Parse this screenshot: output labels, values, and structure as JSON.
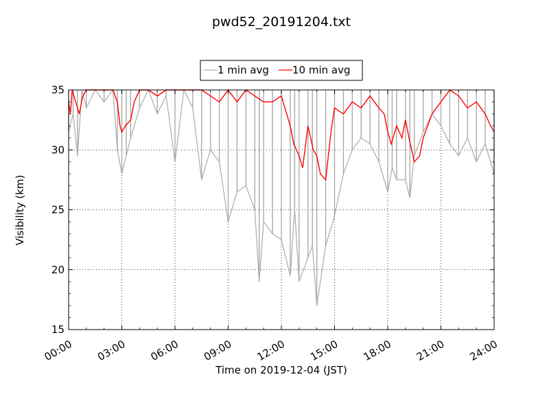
{
  "chart_data": {
    "type": "line",
    "title": "pwd52_20191204.txt",
    "xlabel": "Time on 2019-12-04 (JST)",
    "ylabel": "Visibility (km)",
    "xlim": [
      0,
      24
    ],
    "ylim": [
      15,
      35
    ],
    "x_ticks": [
      "00:00",
      "03:00",
      "06:00",
      "09:00",
      "12:00",
      "15:00",
      "18:00",
      "21:00",
      "24:00"
    ],
    "y_ticks": [
      15,
      20,
      25,
      30,
      35
    ],
    "grid": true,
    "legend": "top-center",
    "series": [
      {
        "name": "1 min avg",
        "color": "#aaaaaa",
        "note": "per-minute visibility; dense spikes below the 35 km ceiling",
        "x": [
          0.0,
          0.25,
          0.5,
          0.75,
          1.0,
          1.5,
          2.0,
          2.5,
          2.75,
          3.0,
          3.25,
          3.5,
          4.0,
          4.5,
          5.0,
          5.5,
          6.0,
          6.5,
          7.0,
          7.5,
          8.0,
          8.5,
          9.0,
          9.5,
          10.0,
          10.5,
          10.75,
          11.0,
          11.5,
          12.0,
          12.5,
          12.75,
          13.0,
          13.5,
          13.75,
          14.0,
          14.5,
          15.0,
          15.5,
          16.0,
          16.5,
          17.0,
          17.5,
          18.0,
          18.25,
          18.5,
          19.0,
          19.25,
          19.5,
          20.0,
          20.5,
          21.0,
          21.5,
          22.0,
          22.5,
          23.0,
          23.5,
          24.0
        ],
        "y": [
          31.5,
          33.0,
          29.5,
          35.0,
          33.5,
          35.0,
          34.0,
          35.0,
          30.0,
          28.0,
          29.5,
          31.0,
          33.5,
          35.0,
          33.0,
          34.5,
          29.0,
          35.0,
          33.5,
          27.5,
          30.0,
          29.0,
          24.0,
          26.5,
          27.0,
          25.0,
          19.0,
          24.0,
          23.0,
          22.5,
          19.5,
          25.0,
          19.0,
          21.0,
          22.0,
          17.0,
          22.0,
          24.5,
          28.0,
          30.0,
          31.0,
          30.5,
          29.0,
          26.5,
          28.5,
          27.5,
          27.5,
          26.0,
          29.5,
          31.5,
          33.0,
          32.0,
          30.5,
          29.5,
          31.0,
          29.0,
          30.5,
          28.0
        ]
      },
      {
        "name": "10 min avg",
        "color": "#ff0000",
        "x": [
          0.0,
          0.1,
          0.2,
          0.4,
          0.6,
          0.8,
          1.0,
          1.5,
          2.0,
          2.5,
          2.75,
          2.9,
          3.0,
          3.2,
          3.5,
          3.7,
          4.0,
          4.5,
          5.0,
          5.5,
          6.0,
          6.5,
          7.0,
          7.5,
          8.0,
          8.5,
          9.0,
          9.5,
          10.0,
          10.5,
          11.0,
          11.5,
          12.0,
          12.3,
          12.5,
          12.7,
          13.0,
          13.2,
          13.5,
          13.8,
          14.0,
          14.2,
          14.5,
          14.8,
          15.0,
          15.5,
          16.0,
          16.5,
          17.0,
          17.5,
          17.8,
          18.0,
          18.2,
          18.5,
          18.8,
          19.0,
          19.2,
          19.5,
          19.8,
          20.0,
          20.5,
          21.0,
          21.5,
          22.0,
          22.5,
          23.0,
          23.5,
          23.8,
          24.0
        ],
        "y": [
          34.0,
          33.0,
          35.0,
          34.0,
          33.0,
          34.5,
          35.0,
          35.0,
          35.0,
          35.0,
          34.0,
          32.0,
          31.5,
          32.0,
          32.5,
          34.0,
          35.0,
          35.0,
          34.5,
          35.0,
          35.0,
          35.0,
          35.0,
          35.0,
          34.5,
          34.0,
          35.0,
          34.0,
          35.0,
          34.5,
          34.0,
          34.0,
          34.5,
          33.0,
          32.0,
          30.5,
          29.5,
          28.5,
          32.0,
          30.0,
          29.5,
          28.0,
          27.5,
          31.5,
          33.5,
          33.0,
          34.0,
          33.5,
          34.5,
          33.5,
          33.0,
          31.5,
          30.5,
          32.0,
          31.0,
          32.5,
          31.0,
          29.0,
          29.5,
          31.0,
          33.0,
          34.0,
          35.0,
          34.5,
          33.5,
          34.0,
          33.0,
          32.0,
          31.5
        ]
      }
    ]
  }
}
